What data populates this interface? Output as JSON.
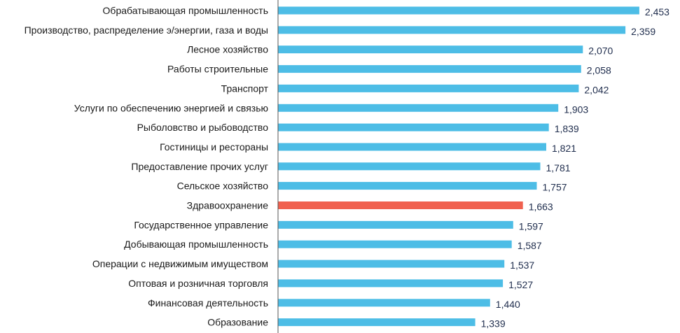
{
  "chart_data": {
    "type": "bar",
    "orientation": "horizontal",
    "title": "",
    "xlabel": "",
    "ylabel": "",
    "categories": [
      "Обрабатывающая промышленность",
      "Производство, распределение э/энергии, газа и воды",
      "Лесное хозяйство",
      "Работы строительные",
      "Транспорт",
      "Услуги по обеспечению энергией и связью",
      "Рыболовство и рыбоводство",
      "Гостиницы и рестораны",
      "Предоставление прочих услуг",
      "Сельское хозяйство",
      "Здравоохранение",
      "Государственное управление",
      "Добывающая промышленность",
      "Операции с недвижимым имуществом",
      "Оптовая и розничная торговля",
      "Финансовая деятельность",
      "Образование"
    ],
    "values": [
      2.453,
      2.359,
      2.07,
      2.058,
      2.042,
      1.903,
      1.839,
      1.821,
      1.781,
      1.757,
      1.663,
      1.597,
      1.587,
      1.537,
      1.527,
      1.44,
      1.339
    ],
    "value_labels": [
      "2,453",
      "2,359",
      "2,070",
      "2,058",
      "2,042",
      "1,903",
      "1,839",
      "1,821",
      "1,781",
      "1,757",
      "1,663",
      "1,597",
      "1,587",
      "1,537",
      "1,527",
      "1,440",
      "1,339"
    ],
    "highlight_category": "Здравоохранение",
    "xlim": [
      0,
      2.8
    ],
    "colors": {
      "bar": "#4dbde6",
      "highlight": "#f0614f",
      "axis": "#555555",
      "category_text": "#1a1a1a",
      "value_text": "#1f2d4d"
    }
  }
}
